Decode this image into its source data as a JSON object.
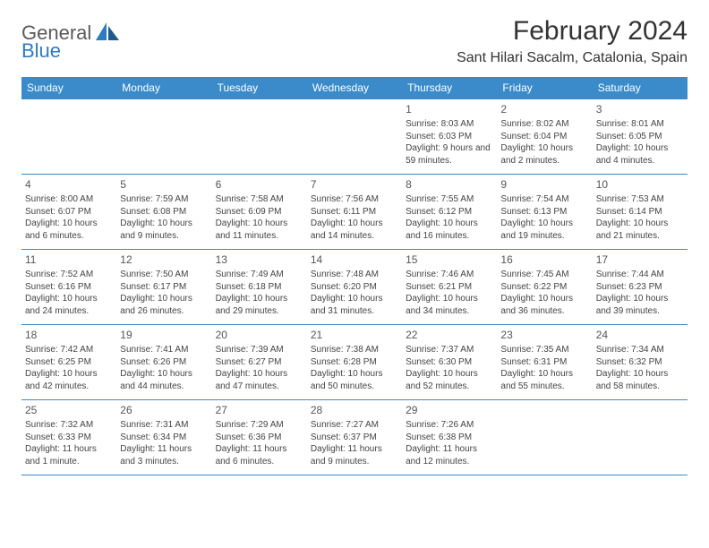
{
  "logo": {
    "part1": "General",
    "part2": "Blue"
  },
  "header": {
    "title": "February 2024",
    "location": "Sant Hilari Sacalm, Catalonia, Spain"
  },
  "colors": {
    "header_bg": "#3b8bca",
    "header_text": "#ffffff",
    "border": "#3b8bca",
    "logo_gray": "#5a5a5a",
    "logo_blue": "#2d7bc0",
    "title_text": "#333333",
    "cell_text": "#444444",
    "daynum_text": "#555555",
    "page_bg": "#ffffff"
  },
  "weekdays": [
    "Sunday",
    "Monday",
    "Tuesday",
    "Wednesday",
    "Thursday",
    "Friday",
    "Saturday"
  ],
  "weeks": [
    [
      null,
      null,
      null,
      null,
      {
        "n": "1",
        "sunrise": "Sunrise: 8:03 AM",
        "sunset": "Sunset: 6:03 PM",
        "daylight": "Daylight: 9 hours and 59 minutes."
      },
      {
        "n": "2",
        "sunrise": "Sunrise: 8:02 AM",
        "sunset": "Sunset: 6:04 PM",
        "daylight": "Daylight: 10 hours and 2 minutes."
      },
      {
        "n": "3",
        "sunrise": "Sunrise: 8:01 AM",
        "sunset": "Sunset: 6:05 PM",
        "daylight": "Daylight: 10 hours and 4 minutes."
      }
    ],
    [
      {
        "n": "4",
        "sunrise": "Sunrise: 8:00 AM",
        "sunset": "Sunset: 6:07 PM",
        "daylight": "Daylight: 10 hours and 6 minutes."
      },
      {
        "n": "5",
        "sunrise": "Sunrise: 7:59 AM",
        "sunset": "Sunset: 6:08 PM",
        "daylight": "Daylight: 10 hours and 9 minutes."
      },
      {
        "n": "6",
        "sunrise": "Sunrise: 7:58 AM",
        "sunset": "Sunset: 6:09 PM",
        "daylight": "Daylight: 10 hours and 11 minutes."
      },
      {
        "n": "7",
        "sunrise": "Sunrise: 7:56 AM",
        "sunset": "Sunset: 6:11 PM",
        "daylight": "Daylight: 10 hours and 14 minutes."
      },
      {
        "n": "8",
        "sunrise": "Sunrise: 7:55 AM",
        "sunset": "Sunset: 6:12 PM",
        "daylight": "Daylight: 10 hours and 16 minutes."
      },
      {
        "n": "9",
        "sunrise": "Sunrise: 7:54 AM",
        "sunset": "Sunset: 6:13 PM",
        "daylight": "Daylight: 10 hours and 19 minutes."
      },
      {
        "n": "10",
        "sunrise": "Sunrise: 7:53 AM",
        "sunset": "Sunset: 6:14 PM",
        "daylight": "Daylight: 10 hours and 21 minutes."
      }
    ],
    [
      {
        "n": "11",
        "sunrise": "Sunrise: 7:52 AM",
        "sunset": "Sunset: 6:16 PM",
        "daylight": "Daylight: 10 hours and 24 minutes."
      },
      {
        "n": "12",
        "sunrise": "Sunrise: 7:50 AM",
        "sunset": "Sunset: 6:17 PM",
        "daylight": "Daylight: 10 hours and 26 minutes."
      },
      {
        "n": "13",
        "sunrise": "Sunrise: 7:49 AM",
        "sunset": "Sunset: 6:18 PM",
        "daylight": "Daylight: 10 hours and 29 minutes."
      },
      {
        "n": "14",
        "sunrise": "Sunrise: 7:48 AM",
        "sunset": "Sunset: 6:20 PM",
        "daylight": "Daylight: 10 hours and 31 minutes."
      },
      {
        "n": "15",
        "sunrise": "Sunrise: 7:46 AM",
        "sunset": "Sunset: 6:21 PM",
        "daylight": "Daylight: 10 hours and 34 minutes."
      },
      {
        "n": "16",
        "sunrise": "Sunrise: 7:45 AM",
        "sunset": "Sunset: 6:22 PM",
        "daylight": "Daylight: 10 hours and 36 minutes."
      },
      {
        "n": "17",
        "sunrise": "Sunrise: 7:44 AM",
        "sunset": "Sunset: 6:23 PM",
        "daylight": "Daylight: 10 hours and 39 minutes."
      }
    ],
    [
      {
        "n": "18",
        "sunrise": "Sunrise: 7:42 AM",
        "sunset": "Sunset: 6:25 PM",
        "daylight": "Daylight: 10 hours and 42 minutes."
      },
      {
        "n": "19",
        "sunrise": "Sunrise: 7:41 AM",
        "sunset": "Sunset: 6:26 PM",
        "daylight": "Daylight: 10 hours and 44 minutes."
      },
      {
        "n": "20",
        "sunrise": "Sunrise: 7:39 AM",
        "sunset": "Sunset: 6:27 PM",
        "daylight": "Daylight: 10 hours and 47 minutes."
      },
      {
        "n": "21",
        "sunrise": "Sunrise: 7:38 AM",
        "sunset": "Sunset: 6:28 PM",
        "daylight": "Daylight: 10 hours and 50 minutes."
      },
      {
        "n": "22",
        "sunrise": "Sunrise: 7:37 AM",
        "sunset": "Sunset: 6:30 PM",
        "daylight": "Daylight: 10 hours and 52 minutes."
      },
      {
        "n": "23",
        "sunrise": "Sunrise: 7:35 AM",
        "sunset": "Sunset: 6:31 PM",
        "daylight": "Daylight: 10 hours and 55 minutes."
      },
      {
        "n": "24",
        "sunrise": "Sunrise: 7:34 AM",
        "sunset": "Sunset: 6:32 PM",
        "daylight": "Daylight: 10 hours and 58 minutes."
      }
    ],
    [
      {
        "n": "25",
        "sunrise": "Sunrise: 7:32 AM",
        "sunset": "Sunset: 6:33 PM",
        "daylight": "Daylight: 11 hours and 1 minute."
      },
      {
        "n": "26",
        "sunrise": "Sunrise: 7:31 AM",
        "sunset": "Sunset: 6:34 PM",
        "daylight": "Daylight: 11 hours and 3 minutes."
      },
      {
        "n": "27",
        "sunrise": "Sunrise: 7:29 AM",
        "sunset": "Sunset: 6:36 PM",
        "daylight": "Daylight: 11 hours and 6 minutes."
      },
      {
        "n": "28",
        "sunrise": "Sunrise: 7:27 AM",
        "sunset": "Sunset: 6:37 PM",
        "daylight": "Daylight: 11 hours and 9 minutes."
      },
      {
        "n": "29",
        "sunrise": "Sunrise: 7:26 AM",
        "sunset": "Sunset: 6:38 PM",
        "daylight": "Daylight: 11 hours and 12 minutes."
      },
      null,
      null
    ]
  ]
}
